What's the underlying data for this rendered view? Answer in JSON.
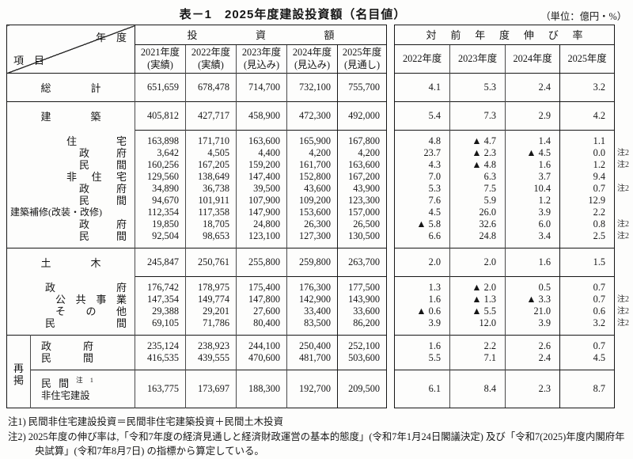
{
  "title": "表－1　2025年度建設投資額（名目値）",
  "unit": "（単位：億円・%）",
  "header": {
    "year_label": "年　度",
    "item_label": "項　目",
    "investment_header": "投資額",
    "growth_header": "対前年度伸び率",
    "left_years": [
      {
        "year": "2021年度",
        "status": "(実績)"
      },
      {
        "year": "2022年度",
        "status": "(実績)"
      },
      {
        "year": "2023年度",
        "status": "(見込み)"
      },
      {
        "year": "2024年度",
        "status": "(見込み)"
      },
      {
        "year": "2025年度",
        "status": "(見通し)"
      }
    ],
    "right_years": [
      "2022年度",
      "2023年度",
      "2024年度",
      "2025年度"
    ]
  },
  "rehang_label": "再掲",
  "rows": [
    {
      "label": "総計",
      "level": "l0",
      "sep": "full",
      "h": "tall",
      "pad": null,
      "inv": [
        "651,659",
        "678,478",
        "714,700",
        "732,100",
        "755,700"
      ],
      "growth": [
        "4.1",
        "5.3",
        "2.4",
        "3.2"
      ],
      "note": ""
    },
    {
      "label": "建築",
      "level": "l0",
      "sep": "full",
      "h": "tall",
      "pad": null,
      "inv": [
        "405,812",
        "427,717",
        "458,900",
        "472,300",
        "492,000"
      ],
      "growth": [
        "5.4",
        "7.3",
        "2.9",
        "4.2"
      ],
      "note": ""
    },
    {
      "label": "住宅",
      "level": "l1",
      "sep": "vals",
      "h": "compact",
      "pad": "top",
      "inv": [
        "163,898",
        "171,710",
        "163,600",
        "165,900",
        "167,800"
      ],
      "growth": [
        "4.8",
        "▲ 4.7",
        "1.4",
        "1.1"
      ],
      "note": ""
    },
    {
      "label": "政府",
      "level": "l2",
      "sep": "none",
      "h": "compact",
      "pad": null,
      "inv": [
        "3,642",
        "4,505",
        "4,400",
        "4,200",
        "4,200"
      ],
      "growth": [
        "23.7",
        "▲ 2.3",
        "▲ 4.5",
        "0.0"
      ],
      "note": "注2"
    },
    {
      "label": "民間",
      "level": "l2",
      "sep": "none",
      "h": "compact",
      "pad": null,
      "inv": [
        "160,256",
        "167,205",
        "159,200",
        "161,700",
        "163,600"
      ],
      "growth": [
        "4.3",
        "▲ 4.8",
        "1.6",
        "1.2"
      ],
      "note": "注2"
    },
    {
      "label": "非住宅",
      "level": "l1",
      "sep": "none",
      "h": "compact",
      "pad": null,
      "inv": [
        "129,560",
        "138,649",
        "147,400",
        "152,800",
        "167,200"
      ],
      "growth": [
        "7.0",
        "6.3",
        "3.7",
        "9.4"
      ],
      "note": ""
    },
    {
      "label": "政府",
      "level": "l2",
      "sep": "none",
      "h": "compact",
      "pad": null,
      "inv": [
        "34,890",
        "36,738",
        "39,500",
        "43,600",
        "43,900"
      ],
      "growth": [
        "5.3",
        "7.5",
        "10.4",
        "0.7"
      ],
      "note": "注2"
    },
    {
      "label": "民間",
      "level": "l2",
      "sep": "none",
      "h": "compact",
      "pad": null,
      "inv": [
        "94,670",
        "101,911",
        "107,900",
        "109,200",
        "123,300"
      ],
      "growth": [
        "7.6",
        "5.9",
        "1.2",
        "12.9"
      ],
      "note": ""
    },
    {
      "label": "建築補修(改装・改修)",
      "level": "l3",
      "sep": "none",
      "h": "compact",
      "pad": null,
      "inv": [
        "112,354",
        "117,358",
        "147,900",
        "153,600",
        "157,000"
      ],
      "growth": [
        "4.5",
        "26.0",
        "3.9",
        "2.2"
      ],
      "note": ""
    },
    {
      "label": "政府",
      "level": "l2",
      "sep": "none",
      "h": "compact",
      "pad": null,
      "inv": [
        "19,850",
        "18,705",
        "24,800",
        "26,300",
        "26,500"
      ],
      "growth": [
        "▲ 5.8",
        "32.6",
        "6.0",
        "0.8"
      ],
      "note": "注2"
    },
    {
      "label": "民間",
      "level": "l2",
      "sep": "none",
      "h": "compact",
      "pad": "bottom",
      "inv": [
        "92,504",
        "98,653",
        "123,100",
        "127,300",
        "130,500"
      ],
      "growth": [
        "6.6",
        "24.8",
        "3.4",
        "2.5"
      ],
      "note": "注2"
    },
    {
      "label": "土木",
      "level": "l0",
      "sep": "full",
      "h": "tall",
      "pad": null,
      "inv": [
        "245,847",
        "250,761",
        "255,800",
        "259,800",
        "263,700"
      ],
      "growth": [
        "2.0",
        "2.0",
        "1.6",
        "1.5"
      ],
      "note": ""
    },
    {
      "label": "政府",
      "level": "l4",
      "sep": "vals",
      "h": "compact",
      "pad": "top",
      "inv": [
        "176,742",
        "178,975",
        "175,400",
        "176,300",
        "177,500"
      ],
      "growth": [
        "1.3",
        "▲ 2.0",
        "0.5",
        "0.7"
      ],
      "note": ""
    },
    {
      "label": "公共事業",
      "level": "l5",
      "sep": "none",
      "h": "compact",
      "pad": null,
      "inv": [
        "147,354",
        "149,774",
        "147,800",
        "142,900",
        "143,900"
      ],
      "growth": [
        "1.6",
        "▲ 1.3",
        "▲ 3.3",
        "0.7"
      ],
      "note": "注2"
    },
    {
      "label": "その他",
      "level": "l5",
      "sep": "none",
      "h": "compact",
      "pad": null,
      "inv": [
        "29,388",
        "29,201",
        "27,600",
        "33,400",
        "33,600"
      ],
      "growth": [
        "▲ 0.6",
        "▲ 5.5",
        "21.0",
        "0.6"
      ],
      "note": "注2"
    },
    {
      "label": "民間",
      "level": "l4",
      "sep": "none",
      "h": "compact",
      "pad": "bottom",
      "inv": [
        "69,105",
        "71,786",
        "80,400",
        "83,500",
        "86,200"
      ],
      "growth": [
        "3.9",
        "12.0",
        "3.9",
        "3.2"
      ],
      "note": "注2"
    },
    {
      "label": "政府",
      "level": "l6",
      "sep": "full",
      "h": "compact",
      "pad": "top",
      "in_rehang": true,
      "rehang_start": true,
      "inv": [
        "235,124",
        "238,923",
        "244,100",
        "250,400",
        "252,100"
      ],
      "growth": [
        "1.6",
        "2.2",
        "2.6",
        "0.7"
      ],
      "note": ""
    },
    {
      "label": "民間",
      "level": "l6",
      "sep": "none",
      "h": "compact",
      "pad": "bottom",
      "in_rehang": true,
      "inv": [
        "416,535",
        "439,555",
        "470,600",
        "481,700",
        "503,600"
      ],
      "growth": [
        "5.5",
        "7.1",
        "2.4",
        "4.5"
      ],
      "note": ""
    },
    {
      "label": "民間",
      "sup": "注1",
      "label2": "非住宅建設",
      "level": "l7",
      "sep": "rehang",
      "h": "tall2",
      "pad": null,
      "in_rehang": true,
      "inv": [
        "163,775",
        "173,697",
        "188,300",
        "192,700",
        "209,500"
      ],
      "growth": [
        "6.1",
        "8.4",
        "2.3",
        "8.7"
      ],
      "note": ""
    }
  ],
  "footnotes": [
    "注1) 民間非住宅建設投資＝民間非住宅建築投資＋民間土木投資",
    "注2) 2025年度の伸び率は,「令和7年度の経済見通しと経済財政運営の基本的態度」(令和7年1月24日閣議決定) 及び「令和7(2025)年度内閣府年央試算」(令和7年8月7日) の指標から算定している。"
  ]
}
